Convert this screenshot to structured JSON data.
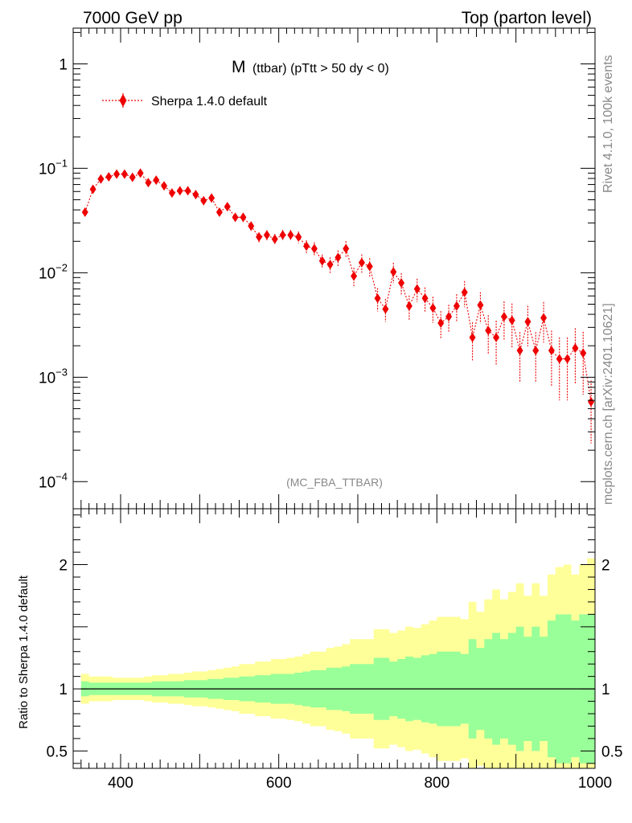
{
  "header": {
    "left": "7000 GeV pp",
    "right": "Top (parton level)"
  },
  "side": {
    "rivet": "Rivet 4.1.0,  100k events",
    "mcplots": "mcplots.cern.ch [arXiv:2401.10621]"
  },
  "colors": {
    "series": "#ee0000",
    "band_inner": "#99ff99",
    "band_outer": "#ffff99",
    "frame": "#000000",
    "muted": "#888888"
  },
  "chart_data": [
    {
      "type": "scatter",
      "yscale": "log",
      "title_main": "M",
      "title_sub": "(ttbar) (pTtt > 50 dy < 0)",
      "watermark": "(MC_FBA_TTBAR)",
      "xlim": [
        340,
        1000
      ],
      "ylim": [
        5.5e-05,
        2.2
      ],
      "legend": {
        "label": "Sherpa 1.4.0 default",
        "position": "top-left"
      },
      "ytick_labels": [
        {
          "value": 1,
          "base": "1",
          "exp": ""
        },
        {
          "value": 0.1,
          "base": "10",
          "exp": "−1"
        },
        {
          "value": 0.01,
          "base": "10",
          "exp": "−2"
        },
        {
          "value": 0.001,
          "base": "10",
          "exp": "−3"
        },
        {
          "value": 0.0001,
          "base": "10",
          "exp": "−4"
        }
      ],
      "series": [
        {
          "name": "Sherpa 1.4.0 default",
          "x": [
            355,
            365,
            375,
            385,
            395,
            405,
            415,
            425,
            435,
            445,
            455,
            465,
            475,
            485,
            495,
            505,
            515,
            525,
            535,
            545,
            555,
            565,
            575,
            585,
            595,
            605,
            615,
            625,
            635,
            645,
            655,
            665,
            675,
            685,
            695,
            705,
            715,
            725,
            735,
            745,
            755,
            765,
            775,
            785,
            795,
            805,
            815,
            825,
            835,
            845,
            855,
            865,
            875,
            885,
            895,
            905,
            915,
            925,
            935,
            945,
            955,
            965,
            975,
            985,
            995
          ],
          "y": [
            0.038,
            0.063,
            0.079,
            0.083,
            0.088,
            0.088,
            0.082,
            0.09,
            0.073,
            0.077,
            0.068,
            0.058,
            0.061,
            0.061,
            0.056,
            0.049,
            0.052,
            0.038,
            0.043,
            0.034,
            0.034,
            0.028,
            0.022,
            0.023,
            0.021,
            0.023,
            0.023,
            0.022,
            0.018,
            0.017,
            0.013,
            0.012,
            0.014,
            0.017,
            0.0093,
            0.0125,
            0.0115,
            0.0057,
            0.0045,
            0.0102,
            0.008,
            0.0048,
            0.007,
            0.0057,
            0.0046,
            0.0033,
            0.0038,
            0.0048,
            0.0065,
            0.0024,
            0.0049,
            0.0028,
            0.0024,
            0.0038,
            0.0035,
            0.0018,
            0.0034,
            0.0018,
            0.0037,
            0.0018,
            0.0015,
            0.0015,
            0.0019,
            0.0017,
            0.00058
          ],
          "rel_err": [
            0.06,
            0.05,
            0.05,
            0.05,
            0.05,
            0.05,
            0.05,
            0.05,
            0.05,
            0.06,
            0.06,
            0.06,
            0.06,
            0.07,
            0.07,
            0.07,
            0.08,
            0.08,
            0.09,
            0.09,
            0.1,
            0.1,
            0.11,
            0.11,
            0.12,
            0.12,
            0.12,
            0.13,
            0.14,
            0.15,
            0.15,
            0.17,
            0.17,
            0.18,
            0.2,
            0.2,
            0.2,
            0.25,
            0.25,
            0.22,
            0.24,
            0.26,
            0.25,
            0.27,
            0.28,
            0.3,
            0.3,
            0.3,
            0.28,
            0.4,
            0.33,
            0.4,
            0.45,
            0.4,
            0.45,
            0.5,
            0.42,
            0.5,
            0.42,
            0.55,
            0.6,
            0.6,
            0.55,
            0.6,
            0.6
          ]
        }
      ]
    },
    {
      "type": "area",
      "ylabel": "Ratio to Sherpa 1.4.0 default",
      "xlim": [
        340,
        1000
      ],
      "ylim": [
        0.36,
        2.45
      ],
      "reference_line": 1,
      "xtick_labels": [
        400,
        600,
        800,
        1000
      ],
      "ytick_labels": [
        {
          "value": 0.5,
          "label": "0.5"
        },
        {
          "value": 1,
          "label": "1"
        },
        {
          "value": 2,
          "label": "2"
        }
      ],
      "bins_x_edges": [
        350,
        360,
        370,
        380,
        390,
        400,
        410,
        420,
        430,
        440,
        450,
        460,
        470,
        480,
        490,
        500,
        510,
        520,
        530,
        540,
        550,
        560,
        570,
        580,
        590,
        600,
        610,
        620,
        630,
        640,
        650,
        660,
        670,
        680,
        690,
        700,
        710,
        720,
        730,
        740,
        750,
        760,
        770,
        780,
        790,
        800,
        810,
        820,
        830,
        840,
        850,
        860,
        870,
        880,
        890,
        900,
        910,
        920,
        930,
        940,
        950,
        960,
        970,
        980,
        990,
        1000
      ],
      "band_inner_rel": [
        0.06,
        0.05,
        0.05,
        0.05,
        0.05,
        0.05,
        0.05,
        0.05,
        0.05,
        0.06,
        0.06,
        0.06,
        0.06,
        0.07,
        0.07,
        0.07,
        0.08,
        0.08,
        0.09,
        0.09,
        0.1,
        0.1,
        0.11,
        0.11,
        0.12,
        0.12,
        0.12,
        0.13,
        0.14,
        0.15,
        0.15,
        0.17,
        0.17,
        0.18,
        0.2,
        0.2,
        0.2,
        0.25,
        0.25,
        0.22,
        0.24,
        0.26,
        0.25,
        0.27,
        0.28,
        0.3,
        0.3,
        0.3,
        0.28,
        0.4,
        0.33,
        0.4,
        0.45,
        0.4,
        0.45,
        0.5,
        0.42,
        0.5,
        0.42,
        0.55,
        0.6,
        0.6,
        0.55,
        0.6,
        0.6
      ],
      "band_outer_rel": [
        0.12,
        0.1,
        0.1,
        0.1,
        0.09,
        0.09,
        0.09,
        0.09,
        0.1,
        0.11,
        0.11,
        0.12,
        0.12,
        0.13,
        0.14,
        0.14,
        0.15,
        0.16,
        0.17,
        0.18,
        0.2,
        0.2,
        0.22,
        0.22,
        0.24,
        0.24,
        0.25,
        0.26,
        0.28,
        0.3,
        0.3,
        0.33,
        0.34,
        0.36,
        0.4,
        0.4,
        0.4,
        0.48,
        0.48,
        0.45,
        0.47,
        0.5,
        0.49,
        0.52,
        0.55,
        0.58,
        0.58,
        0.58,
        0.56,
        0.7,
        0.62,
        0.72,
        0.8,
        0.72,
        0.78,
        0.85,
        0.75,
        0.85,
        0.75,
        0.92,
        0.98,
        1.0,
        0.92,
        1.0,
        1.05
      ]
    }
  ]
}
